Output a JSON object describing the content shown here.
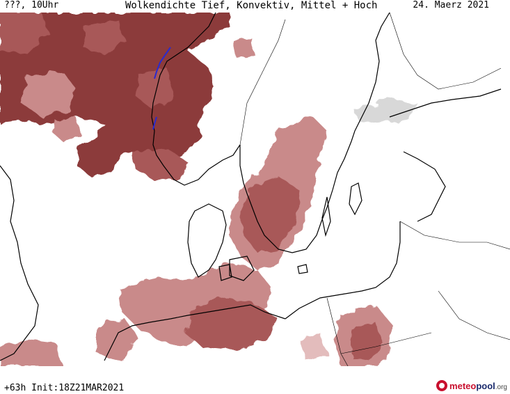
{
  "header": {
    "left_label": "???, 10Uhr",
    "title": "Wolkendichte  Tief, Konvektiv, Mittel + Hoch",
    "date": "24. Maerz 2021"
  },
  "footer": {
    "run_info": "+63h  Init:18Z21MAR2021",
    "logo_meteo": "meteo",
    "logo_pool": "pool",
    "logo_org": ".org"
  },
  "colors": {
    "cloud_dense": "#8c3b3b",
    "cloud_medium": "#a85858",
    "cloud_light": "#c98a8a",
    "cloud_faint": "#e3bcbc",
    "coastline": "#000000",
    "highlight": "#2a2ad0"
  }
}
